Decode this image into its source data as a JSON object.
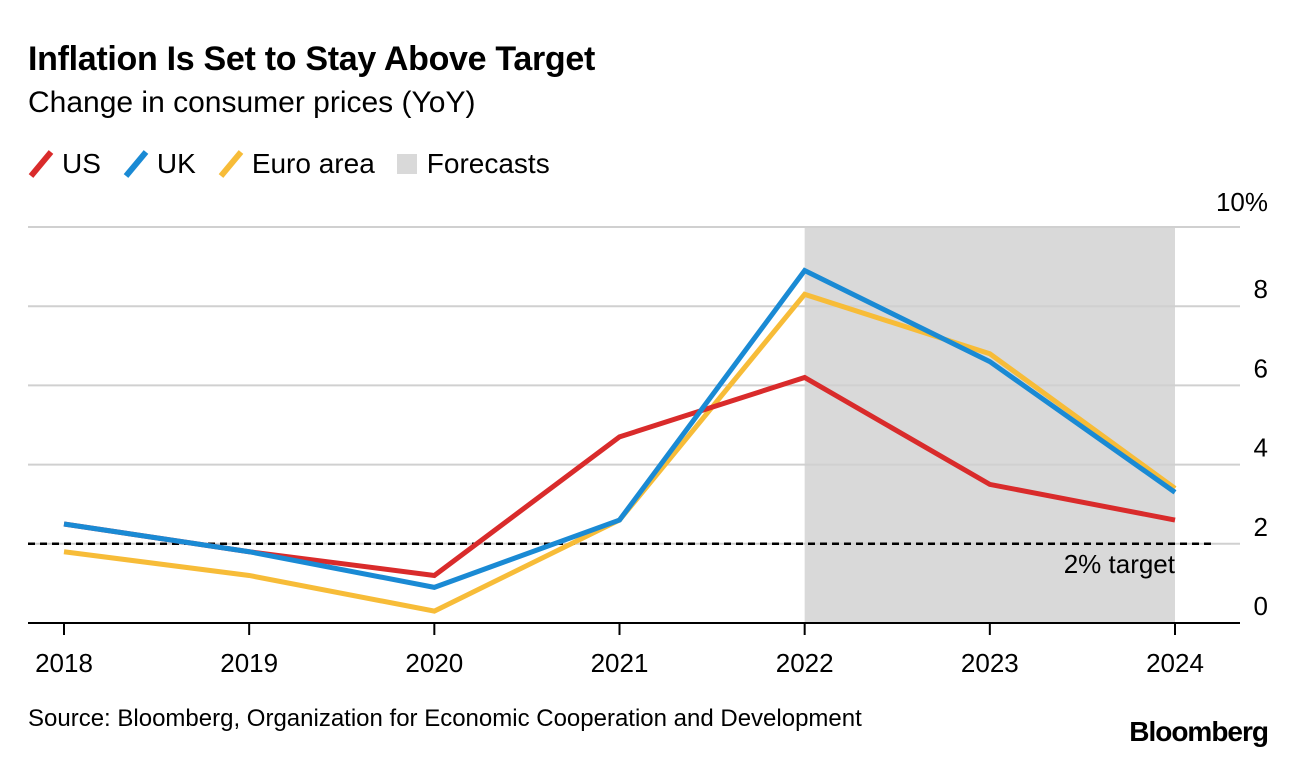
{
  "chart_data": {
    "type": "line",
    "title": "Inflation Is Set to Stay Above Target",
    "subtitle": "Change in consumer prices (YoY)",
    "categories": [
      "2018",
      "2019",
      "2020",
      "2021",
      "2022",
      "2023",
      "2024"
    ],
    "series": [
      {
        "name": "US",
        "color": "#d92b2b",
        "values": [
          2.5,
          1.8,
          1.2,
          4.7,
          6.2,
          3.5,
          2.6
        ]
      },
      {
        "name": "UK",
        "color": "#1a8ad4",
        "values": [
          2.5,
          1.8,
          0.9,
          2.6,
          8.9,
          6.6,
          3.3
        ]
      },
      {
        "name": "Euro area",
        "color": "#f7bc38",
        "values": [
          1.8,
          1.2,
          0.3,
          2.6,
          8.3,
          6.8,
          3.4
        ]
      }
    ],
    "forecast_range": [
      "2022",
      "2024"
    ],
    "forecast_label": "Forecasts",
    "reference_line": {
      "value": 2,
      "label": "2% target"
    },
    "ylim": [
      0,
      10
    ],
    "yticks": [
      0,
      2,
      4,
      6,
      8,
      10
    ],
    "ytick_labels": [
      "0",
      "2",
      "4",
      "6",
      "8",
      "10%"
    ],
    "grid": true,
    "legend_position": "top-left",
    "xlabel": "",
    "ylabel": ""
  },
  "source": "Source: Bloomberg, Organization for Economic Cooperation and Development",
  "brand": "Bloomberg"
}
